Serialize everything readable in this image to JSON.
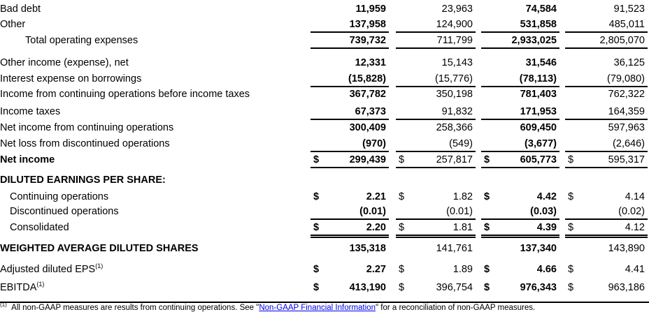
{
  "rows": [
    {
      "label": "Bad debt",
      "indent": 0,
      "bold": false,
      "dollar": false,
      "values": [
        "11,959",
        "23,963",
        "74,584",
        "91,523"
      ]
    },
    {
      "label": "Other",
      "indent": 0,
      "bold": false,
      "dollar": false,
      "values": [
        "137,958",
        "124,900",
        "531,858",
        "485,011"
      ]
    },
    {
      "label": "Total operating expenses",
      "indent": 2,
      "bold": false,
      "dollar": false,
      "values": [
        "739,732",
        "711,799",
        "2,933,025",
        "2,805,070"
      ]
    },
    {
      "label": "Other income (expense), net",
      "indent": 0,
      "bold": false,
      "dollar": false,
      "values": [
        "12,331",
        "15,143",
        "31,546",
        "36,125"
      ]
    },
    {
      "label": "Interest expense on borrowings",
      "indent": 0,
      "bold": false,
      "dollar": false,
      "values": [
        "(15,828)",
        "(15,776)",
        "(78,113)",
        "(79,080)"
      ]
    },
    {
      "label": "Income from continuing operations before income taxes",
      "indent": 0,
      "bold": false,
      "dollar": false,
      "values": [
        "367,782",
        "350,198",
        "781,403",
        "762,322"
      ]
    },
    {
      "label": "Income taxes",
      "indent": 0,
      "bold": false,
      "dollar": false,
      "values": [
        "67,373",
        "91,832",
        "171,953",
        "164,359"
      ]
    },
    {
      "label": "Net income from continuing operations",
      "indent": 0,
      "bold": false,
      "dollar": false,
      "values": [
        "300,409",
        "258,366",
        "609,450",
        "597,963"
      ]
    },
    {
      "label": "Net loss from discontinued operations",
      "indent": 0,
      "bold": false,
      "dollar": false,
      "values": [
        "(970)",
        "(549)",
        "(3,677)",
        "(2,646)"
      ]
    },
    {
      "label": "Net income",
      "indent": 0,
      "bold": true,
      "dollar": true,
      "values": [
        "299,439",
        "257,817",
        "605,773",
        "595,317"
      ]
    },
    {
      "label": "DILUTED EARNINGS PER SHARE:",
      "indent": 0,
      "bold": true,
      "dollar": false,
      "values": []
    },
    {
      "label": "Continuing operations",
      "indent": 1,
      "bold": false,
      "dollar": true,
      "values": [
        "2.21",
        "1.82",
        "4.42",
        "4.14"
      ]
    },
    {
      "label": "Discontinued operations",
      "indent": 1,
      "bold": false,
      "dollar": false,
      "values": [
        "(0.01)",
        "(0.01)",
        "(0.03)",
        "(0.02)"
      ]
    },
    {
      "label": "Consolidated",
      "indent": 1,
      "bold": false,
      "dollar": true,
      "values": [
        "2.20",
        "1.81",
        "4.39",
        "4.12"
      ]
    },
    {
      "label": "WEIGHTED AVERAGE DILUTED SHARES",
      "indent": 0,
      "bold": true,
      "dollar": false,
      "values": [
        "135,318",
        "141,761",
        "137,340",
        "143,890"
      ]
    },
    {
      "label": "Adjusted diluted EPS",
      "sup": "(1)",
      "indent": 0,
      "bold": false,
      "dollar": true,
      "values": [
        "2.27",
        "1.89",
        "4.66",
        "4.41"
      ]
    },
    {
      "label": "EBITDA",
      "sup": "(1)",
      "indent": 0,
      "bold": false,
      "dollar": true,
      "values": [
        "413,190",
        "396,754",
        "976,343",
        "963,186"
      ]
    }
  ],
  "currency_symbol": "$",
  "footnote": {
    "marker": "(1)",
    "text_before": "All non-GAAP measures are results from continuing operations. See \"",
    "link": "Non-GAAP Financial Information",
    "text_after": "\" for a reconciliation of non-GAAP measures."
  },
  "colors": {
    "link": "#0000ee",
    "text": "#000000"
  }
}
